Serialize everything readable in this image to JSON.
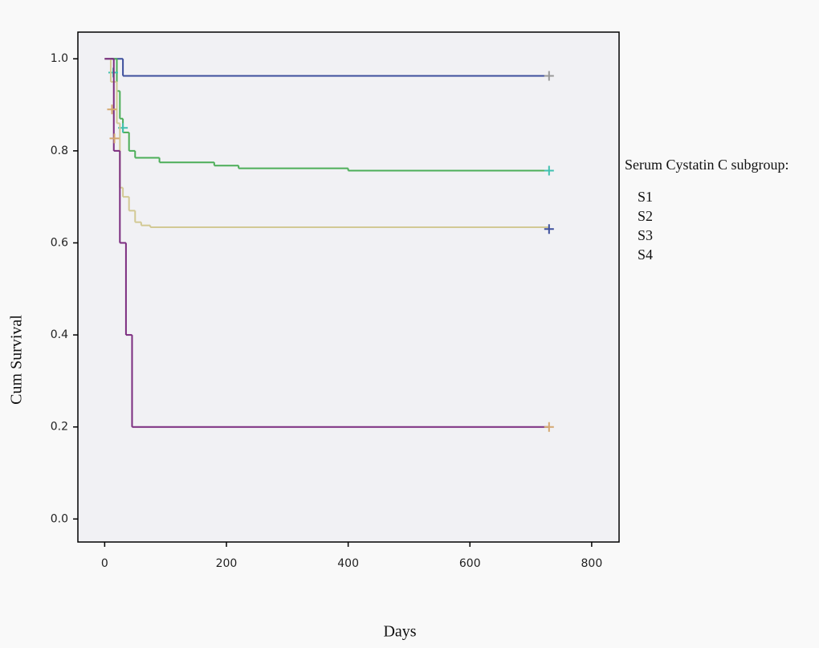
{
  "chart_data": {
    "type": "step",
    "x_label": "Days",
    "y_label": "Cum Survival",
    "legend_title": "Serum Cystatin C subgroup:",
    "xlim": [
      -44,
      845
    ],
    "ylim": [
      -0.05,
      1.058
    ],
    "xticks": [
      0,
      200,
      400,
      600,
      800
    ],
    "yticks": [
      {
        "value": 0,
        "label": "0.0"
      },
      0.2,
      0.4,
      0.6,
      0.8,
      {
        "value": 1,
        "label": "1.0"
      }
    ],
    "series": [
      {
        "name": "S1",
        "color": "#3d4f9c",
        "x": [
          0,
          30
        ],
        "values": [
          1,
          0.963
        ],
        "end_x": 730,
        "censor_x": [
          730
        ],
        "censor_values": [
          0.963
        ],
        "censor_color": "#999999"
      },
      {
        "name": "S2",
        "color": "#4cae58",
        "x": [
          10,
          20,
          25,
          30,
          40,
          50,
          90,
          180,
          220,
          400
        ],
        "values": [
          1,
          0.93,
          0.87,
          0.84,
          0.8,
          0.785,
          0.775,
          0.768,
          0.762,
          0.757
        ],
        "end_x": 730,
        "censor_x": [
          14,
          30,
          730
        ],
        "censor_values": [
          0.97,
          0.85,
          0.757
        ],
        "censor_color": "#40c0b0"
      },
      {
        "name": "S3",
        "color": "#d2c994",
        "x": [
          0,
          10,
          20,
          25,
          30,
          40,
          50,
          60,
          75
        ],
        "values": [
          1,
          0.95,
          0.86,
          0.72,
          0.7,
          0.67,
          0.645,
          0.638,
          0.634
        ],
        "end_x": 730,
        "censor_x": [
          730
        ],
        "censor_values": [
          0.63
        ],
        "censor_color": "#3d4f9c"
      },
      {
        "name": "S4",
        "color": "#7b2c7f",
        "x": [
          0,
          15,
          25,
          35,
          45
        ],
        "values": [
          1,
          0.8,
          0.6,
          0.4,
          0.2
        ],
        "end_x": 730,
        "censor_x": [
          12,
          16,
          730
        ],
        "censor_values": [
          0.89,
          0.827,
          0.2
        ],
        "censor_color": "#d4a870"
      }
    ]
  }
}
